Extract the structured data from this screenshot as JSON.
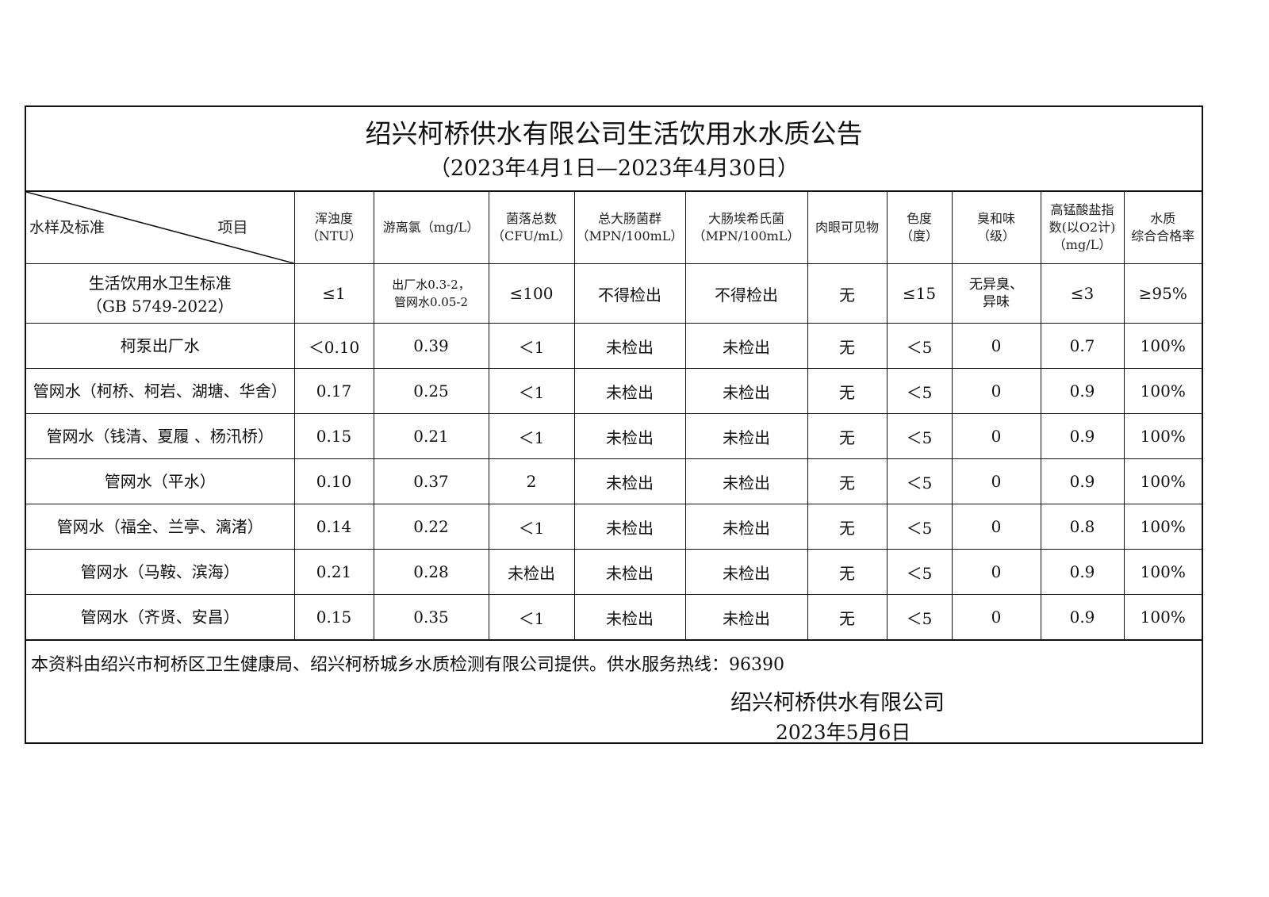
{
  "title": "绍兴柯桥供水有限公司生活饮用水水质公告",
  "period": "（2023年4月1日—2023年4月30日）",
  "header": {
    "corner_left": "水样及标准",
    "corner_right": "项目",
    "columns": [
      [
        "浑浊度",
        "（NTU）"
      ],
      [
        "游离氯（mg/L）",
        ""
      ],
      [
        "菌落总数",
        "（CFU/mL）"
      ],
      [
        "总大肠菌群",
        "（MPN/100mL）"
      ],
      [
        "大肠埃希氏菌",
        "（MPN/100mL）"
      ],
      [
        "肉眼可见物",
        ""
      ],
      [
        "色度",
        "（度）"
      ],
      [
        "臭和味",
        "（级）"
      ],
      [
        "高锰酸盐指",
        "数(以O2计)",
        "（mg/L）"
      ],
      [
        "水质",
        "综合合格率"
      ]
    ]
  },
  "standard": {
    "name": "生活饮用水卫生标准",
    "code": "（GB 5749-2022）",
    "values": [
      "≤1",
      "出厂水0.3-2，",
      "管网水0.05-2",
      "≤100",
      "不得检出",
      "不得检出",
      "无",
      "≤15",
      "无异臭、",
      "异味",
      "≤3",
      "≥95%"
    ]
  },
  "rows": [
    {
      "name": "柯泵出厂水",
      "values": [
        "＜0.10",
        "0.39",
        "＜1",
        "未检出",
        "未检出",
        "无",
        "＜5",
        "0",
        "0.7",
        "100%"
      ]
    },
    {
      "name": "管网水（柯桥、柯岩、湖塘、华舍）",
      "values": [
        "0.17",
        "0.25",
        "＜1",
        "未检出",
        "未检出",
        "无",
        "＜5",
        "0",
        "0.9",
        "100%"
      ]
    },
    {
      "name": "管网水（钱清、夏履 、杨汛桥）",
      "values": [
        "0.15",
        "0.21",
        "＜1",
        "未检出",
        "未检出",
        "无",
        "＜5",
        "0",
        "0.9",
        "100%"
      ]
    },
    {
      "name": "管网水（平水）",
      "values": [
        "0.10",
        "0.37",
        "2",
        "未检出",
        "未检出",
        "无",
        "＜5",
        "0",
        "0.9",
        "100%"
      ]
    },
    {
      "name": "管网水（福全、兰亭、漓渚）",
      "values": [
        "0.14",
        "0.22",
        "＜1",
        "未检出",
        "未检出",
        "无",
        "＜5",
        "0",
        "0.8",
        "100%"
      ]
    },
    {
      "name": "管网水（马鞍、滨海）",
      "values": [
        "0.21",
        "0.28",
        "未检出",
        "未检出",
        "未检出",
        "无",
        "＜5",
        "0",
        "0.9",
        "100%"
      ]
    },
    {
      "name": "管网水（齐贤、安昌）",
      "values": [
        "0.15",
        "0.35",
        "＜1",
        "未检出",
        "未检出",
        "无",
        "＜5",
        "0",
        "0.9",
        "100%"
      ]
    }
  ],
  "footer": {
    "note": "本资料由绍兴市柯桥区卫生健康局、绍兴柯桥城乡水质检测有限公司提供。供水服务热线：96390",
    "company": "绍兴柯桥供水有限公司",
    "date": "2023年5月6日"
  }
}
